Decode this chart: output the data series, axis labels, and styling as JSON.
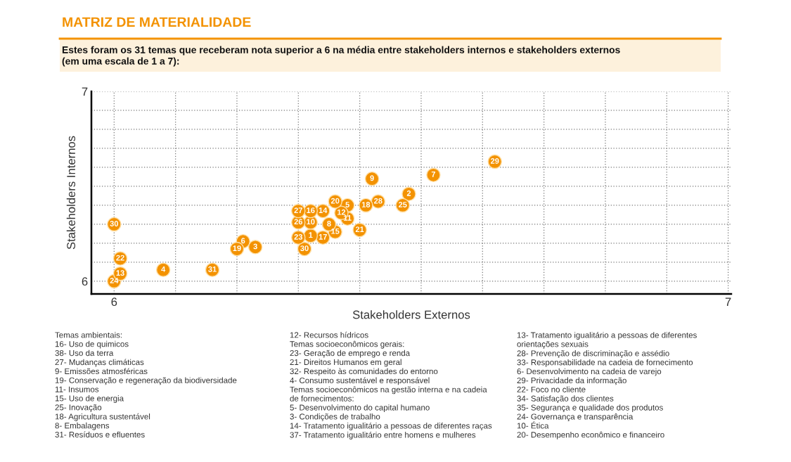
{
  "chart_data": {
    "type": "scatter",
    "title": "MATRIZ DE MATERIALIDADE",
    "subtitle": "Estes foram os 31 temas que receberam nota superior a 6 na média entre stakeholders internos e stakeholders externos\n(em uma escala de 1 a 7):",
    "xlabel": "Stakeholders Externos",
    "ylabel": "Stakeholders Internos",
    "marker": "circle",
    "grid": true,
    "data_labels": false,
    "xlim": [
      5.963,
      7.005
    ],
    "ylim": [
      5.933,
      7.0
    ],
    "xticks": [
      6,
      {
        "value": 6.1,
        "label": null
      },
      {
        "value": 6.2,
        "label": null
      },
      {
        "value": 6.3,
        "label": null
      },
      {
        "value": 6.4,
        "label": null
      },
      {
        "value": 6.5,
        "label": null
      },
      {
        "value": 6.6,
        "label": null
      },
      {
        "value": 6.7,
        "label": null
      },
      {
        "value": 6.8,
        "label": null
      },
      {
        "value": 6.9,
        "label": null
      },
      7
    ],
    "yticks": [
      6,
      {
        "value": 6.1,
        "label": null
      },
      {
        "value": 6.2,
        "label": null
      },
      {
        "value": 6.3,
        "label": null
      },
      {
        "value": 6.4,
        "label": null
      },
      {
        "value": 6.5,
        "label": null
      },
      {
        "value": 6.6,
        "label": null
      },
      {
        "value": 6.7,
        "label": null
      },
      {
        "value": 6.8,
        "label": null
      },
      {
        "value": 6.9,
        "label": null
      },
      7
    ],
    "series": [
      {
        "color": "#f39200",
        "x": [
          6.0,
          6.01,
          6.01,
          6.0,
          6.08,
          6.16,
          6.2,
          6.21,
          6.23,
          6.3,
          6.32,
          6.34,
          6.36,
          6.37,
          6.38,
          6.41,
          6.43,
          6.42,
          6.3,
          6.32,
          6.35,
          6.38,
          6.36,
          6.4,
          6.3,
          6.32,
          6.34,
          6.31,
          6.47,
          6.48,
          6.52,
          6.62
        ],
        "values": [
          6.3,
          6.12,
          6.04,
          6.0,
          6.06,
          6.06,
          6.17,
          6.21,
          6.18,
          6.37,
          6.37,
          6.37,
          6.42,
          6.36,
          6.4,
          6.4,
          6.42,
          6.54,
          6.31,
          6.31,
          6.3,
          6.33,
          6.26,
          6.27,
          6.23,
          6.24,
          6.23,
          6.17,
          6.4,
          6.46,
          6.56,
          6.63
        ]
      }
    ],
    "annotations": [
      {
        "text": "30",
        "x": 6.0,
        "y": 6.3
      },
      {
        "text": "22",
        "x": 6.01,
        "y": 6.12
      },
      {
        "text": "13",
        "x": 6.01,
        "y": 6.04
      },
      {
        "text": "24",
        "x": 6.0,
        "y": 6.0
      },
      {
        "text": "4",
        "x": 6.08,
        "y": 6.06
      },
      {
        "text": "31",
        "x": 6.16,
        "y": 6.06
      },
      {
        "text": "19",
        "x": 6.2,
        "y": 6.17
      },
      {
        "text": "6",
        "x": 6.21,
        "y": 6.21
      },
      {
        "text": "3",
        "x": 6.23,
        "y": 6.18
      },
      {
        "text": "27",
        "x": 6.3,
        "y": 6.37
      },
      {
        "text": "16",
        "x": 6.32,
        "y": 6.37
      },
      {
        "text": "14",
        "x": 6.34,
        "y": 6.37
      },
      {
        "text": "20",
        "x": 6.36,
        "y": 6.42
      },
      {
        "text": "12",
        "x": 6.37,
        "y": 6.36
      },
      {
        "text": "5",
        "x": 6.38,
        "y": 6.4
      },
      {
        "text": "18",
        "x": 6.41,
        "y": 6.4
      },
      {
        "text": "28",
        "x": 6.43,
        "y": 6.42
      },
      {
        "text": "9",
        "x": 6.42,
        "y": 6.54
      },
      {
        "text": "26",
        "x": 6.3,
        "y": 6.31
      },
      {
        "text": "10",
        "x": 6.32,
        "y": 6.31
      },
      {
        "text": "8",
        "x": 6.35,
        "y": 6.3
      },
      {
        "text": "11",
        "x": 6.38,
        "y": 6.33
      },
      {
        "text": "15",
        "x": 6.36,
        "y": 6.26
      },
      {
        "text": "21",
        "x": 6.4,
        "y": 6.27
      },
      {
        "text": "23",
        "x": 6.3,
        "y": 6.23
      },
      {
        "text": "1",
        "x": 6.32,
        "y": 6.24
      },
      {
        "text": "17",
        "x": 6.34,
        "y": 6.23
      },
      {
        "text": "30",
        "x": 6.31,
        "y": 6.17
      },
      {
        "text": "25",
        "x": 6.47,
        "y": 6.4
      },
      {
        "text": "2",
        "x": 6.48,
        "y": 6.46
      },
      {
        "text": "7",
        "x": 6.52,
        "y": 6.56
      },
      {
        "text": "29",
        "x": 6.62,
        "y": 6.63
      },
      "Temas ambientais:\n16- Uso de quimicos\n38- Uso da terra\n27- Mudanças climáticas\n9- Emissões atmosféricas\n19- Conservação e regeneração da biodiversidade\n11- Insumos\n15- Uso de energia\n25- Inovação\n18- Agricultura sustentável\n8- Embalagens\n31- Resíduos e efluentes",
      "12- Recursos hídricos\nTemas socioeconômicos gerais:\n23- Geração de emprego e renda\n21- Direitos Humanos em geral\n32- Respeito às comunidades do entorno\n4- Consumo sustentável e responsável\nTemas socioeconômicos na gestão interna e na cadeia\nde fornecimentos:\n5- Desenvolvimento do capital humano\n3- Condições de trabalho\n14- Tratamento igualitário a pessoas de diferentes raças\n37- Tratamento igualitário entre homens e mulheres",
      "13- Tratamento igualitário a pessoas de diferentes\norientações sexuais\n28- Prevenção de discriminação e assédio\n33- Responsabilidade na cadeia de fornecimento\n6- Desenvolvimento na cadeia de varejo\n29- Privacidade da informação\n22- Foco no cliente\n34- Satisfação dos clientes\n35- Segurança e qualidade dos produtos\n24- Governança e transparência\n10- Ética\n20- Desempenho econômico e financeiro"
    ]
  }
}
